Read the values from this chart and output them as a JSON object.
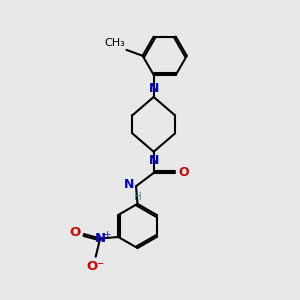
{
  "bg_color": "#e8e8e8",
  "bond_color": "#000000",
  "N_color": "#0000cc",
  "O_color": "#cc0000",
  "H_color": "#4a9090",
  "line_width": 1.5,
  "font_size_atom": 8.5,
  "fig_size": [
    3.0,
    3.0
  ],
  "dpi": 100,
  "xlim": [
    0,
    10
  ],
  "ylim": [
    0,
    10
  ]
}
